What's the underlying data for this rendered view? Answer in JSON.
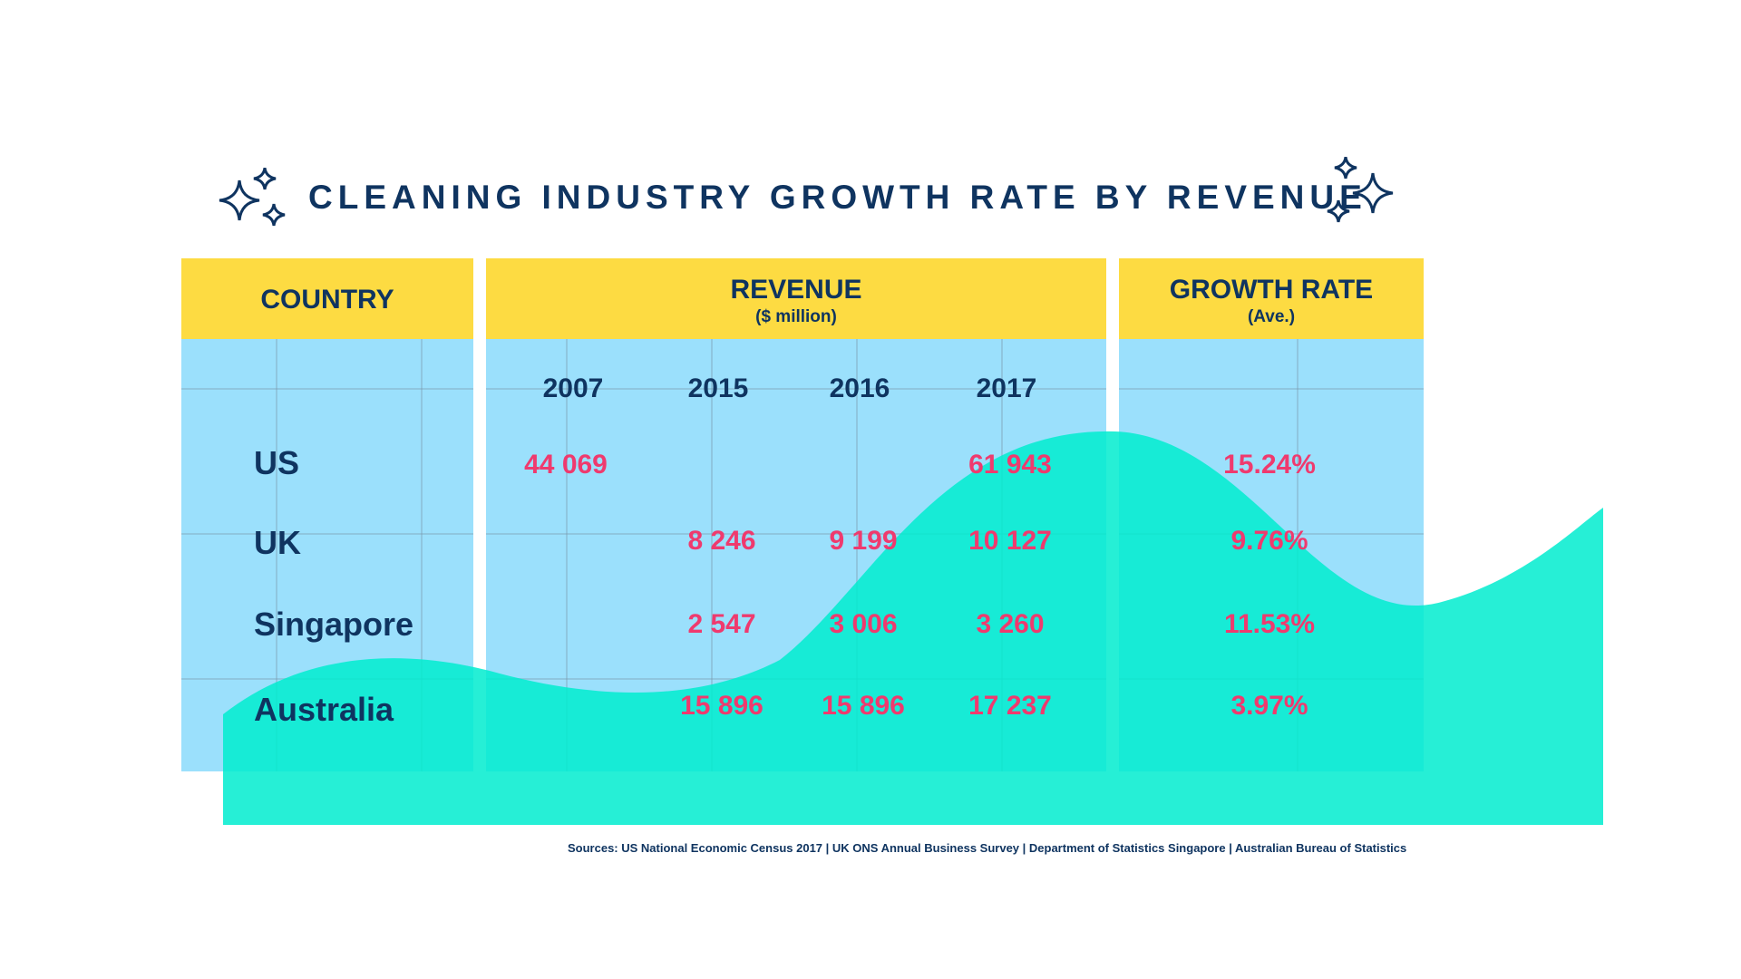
{
  "chart_data": {
    "type": "table",
    "title": "CLEANING INDUSTRY GROWTH RATE BY REVENUE",
    "headers": {
      "country": "COUNTRY",
      "revenue": "REVENUE",
      "revenue_unit": "($ million)",
      "growth": "GROWTH RATE",
      "growth_unit": "(Ave.)"
    },
    "years": [
      "2007",
      "2015",
      "2016",
      "2017"
    ],
    "rows": [
      {
        "country": "US",
        "values": [
          "44 069",
          "",
          "",
          "61 943"
        ],
        "growth": "15.24%"
      },
      {
        "country": "UK",
        "values": [
          "",
          "8 246",
          "9 199",
          "10 127"
        ],
        "growth": "9.76%"
      },
      {
        "country": "Singapore",
        "values": [
          "",
          "2 547",
          "3 006",
          "3 260"
        ],
        "growth": "11.53%"
      },
      {
        "country": "Australia",
        "values": [
          "",
          "15 896",
          "15 896",
          "17 237"
        ],
        "growth": "3.97%"
      }
    ],
    "source": "Sources: US National Economic Census 2017 | UK ONS Annual Business Survey | Department of Statistics Singapore | Australian Bureau of Statistics"
  },
  "colors": {
    "header": "#fddb42",
    "body": "#9be0fc",
    "wave": "#00eccf",
    "navy": "#0f3460",
    "value": "#ef3a6e"
  },
  "icons": [
    "sparkle-icon"
  ]
}
